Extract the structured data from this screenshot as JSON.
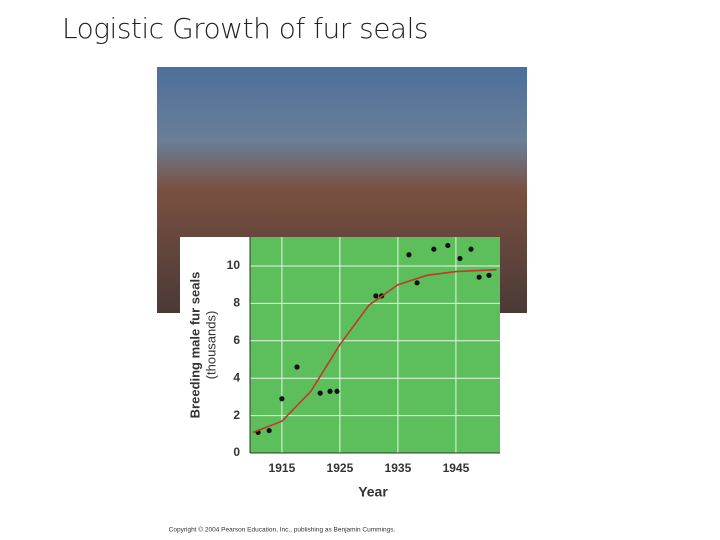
{
  "title": "Logistic Growth of fur seals",
  "copyright": "Copyright © 2004 Pearson Education, Inc., publishing as Benjamin Cummings.",
  "chart_data": {
    "type": "scatter",
    "ylabel": "Breeding male fur seals",
    "ylabel_unit": "(thousands)",
    "xlabel": "Year",
    "xlim": [
      1909.5,
      1952.6
    ],
    "ylim": [
      0,
      11.55
    ],
    "xticks": [
      1915,
      1925,
      1935,
      1945
    ],
    "yticks": [
      0,
      2,
      4,
      6,
      8,
      10
    ],
    "grid": true,
    "background": "#5cbf5c",
    "series": [
      {
        "type": "scatter",
        "color": "#111111",
        "x": [
          1910.9,
          1912.8,
          1915,
          1917.6,
          1921.6,
          1923.3,
          1924.5,
          1931.2,
          1932.2,
          1936.9,
          1938.3,
          1941.2,
          1943.6,
          1945.7,
          1947.6,
          1949,
          1950.7
        ],
        "values": [
          1.1,
          1.2,
          2.9,
          4.6,
          3.2,
          3.3,
          3.3,
          8.4,
          8.4,
          10.6,
          9.1,
          10.9,
          11.1,
          10.4,
          10.9,
          9.4,
          9.5
        ]
      },
      {
        "type": "line",
        "color": "#c0392b",
        "x": [
          1910,
          1915,
          1920,
          1925,
          1930,
          1935,
          1940,
          1945,
          1952
        ],
        "values": [
          1.1,
          1.7,
          3.3,
          5.8,
          7.9,
          9.0,
          9.5,
          9.7,
          9.8
        ]
      }
    ]
  }
}
